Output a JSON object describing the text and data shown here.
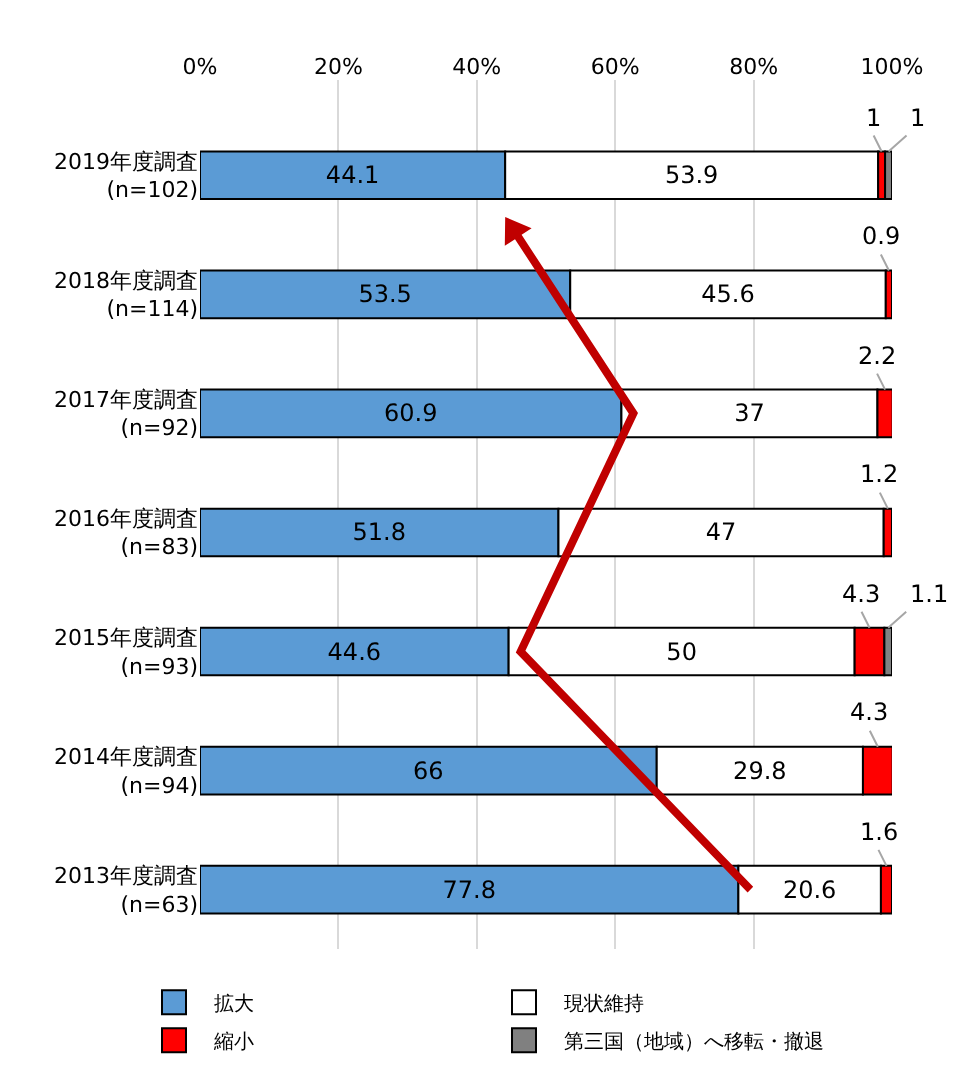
{
  "chart_data": {
    "type": "bar",
    "orientation": "horizontal",
    "stacked": true,
    "categories": [
      "2019年度調査\n(n=102)",
      "2018年度調査\n(n=114)",
      "2017年度調査\n(n=92)",
      "2016年度調査\n(n=83)",
      "2015年度調査\n(n=93)",
      "2014年度調査\n(n=94)",
      "2013年度調査\n(n=63)"
    ],
    "series": [
      {
        "name": "拡大",
        "color": "#5b9bd5",
        "values": [
          44.1,
          53.5,
          60.9,
          51.8,
          44.6,
          66,
          77.8
        ]
      },
      {
        "name": "現状維持",
        "color": "#ffffff",
        "values": [
          53.9,
          45.6,
          37,
          47,
          50,
          29.8,
          20.6
        ]
      },
      {
        "name": "縮小",
        "color": "#ff0000",
        "values": [
          1,
          0.9,
          2.2,
          1.2,
          4.3,
          4.3,
          1.6
        ]
      },
      {
        "name": "第三国（地域）へ移転・撤退",
        "color": "#808080",
        "values": [
          1,
          null,
          null,
          null,
          1.1,
          null,
          null
        ]
      }
    ],
    "xlim": [
      0,
      100
    ],
    "xticks": [
      {
        "value": 0,
        "label": "0%"
      },
      {
        "value": 20,
        "label": "20%"
      },
      {
        "value": 40,
        "label": "40%"
      },
      {
        "value": 60,
        "label": "60%"
      },
      {
        "value": 80,
        "label": "80%"
      },
      {
        "value": 100,
        "label": "100%"
      }
    ],
    "grid": "x",
    "legend": "bottom",
    "data_labels": true
  }
}
